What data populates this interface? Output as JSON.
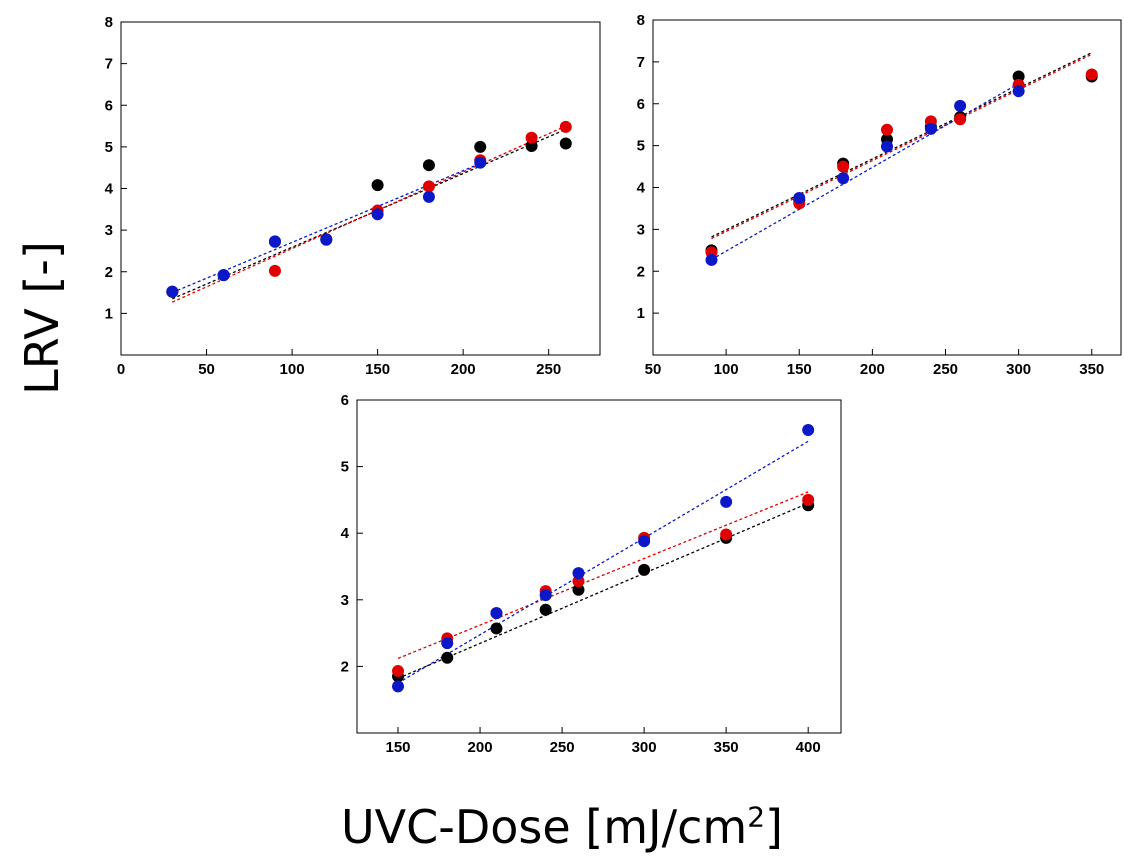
{
  "figure": {
    "ylabel": "LRV [-]",
    "xlabel": "UVC-Dose [mJ/cm",
    "xlabel_superscript": "2",
    "xlabel_suffix": "]"
  },
  "colors": {
    "black": "#000000",
    "red": "#e00000",
    "blue": "#0a18c8"
  },
  "chart_data": [
    {
      "type": "scatter",
      "title": "",
      "xlabel": "",
      "ylabel": "",
      "xlim": [
        0,
        280
      ],
      "ylim": [
        0,
        8
      ],
      "xticks": [
        0,
        50,
        100,
        150,
        200,
        250
      ],
      "yticks": [
        1,
        2,
        3,
        4,
        5,
        6,
        7,
        8
      ],
      "grid": false,
      "series": [
        {
          "color": "black",
          "x": [
            30,
            60,
            90,
            120,
            150,
            180,
            210,
            240,
            260
          ],
          "y": [
            1.52,
            1.92,
            2.72,
            2.78,
            4.08,
            4.56,
            5.0,
            5.02,
            5.08
          ],
          "fit": [
            [
              30,
              1.35
            ],
            [
              260,
              5.42
            ]
          ]
        },
        {
          "color": "red",
          "x": [
            30,
            90,
            150,
            180,
            210,
            240,
            260
          ],
          "y": [
            1.52,
            2.02,
            3.47,
            4.05,
            4.68,
            5.22,
            5.48
          ],
          "fit": [
            [
              30,
              1.27
            ],
            [
              260,
              5.5
            ]
          ]
        },
        {
          "color": "blue",
          "x": [
            30,
            60,
            90,
            120,
            150,
            180,
            210
          ],
          "y": [
            1.52,
            1.92,
            2.73,
            2.77,
            3.38,
            3.8,
            4.62
          ],
          "fit": [
            [
              30,
              1.5
            ],
            [
              210,
              4.6
            ]
          ]
        }
      ]
    },
    {
      "type": "scatter",
      "title": "",
      "xlabel": "",
      "ylabel": "",
      "xlim": [
        50,
        370
      ],
      "ylim": [
        0,
        8
      ],
      "xticks": [
        50,
        100,
        150,
        200,
        250,
        300,
        350
      ],
      "yticks": [
        1,
        2,
        3,
        4,
        5,
        6,
        7,
        8
      ],
      "grid": false,
      "series": [
        {
          "color": "black",
          "x": [
            90,
            150,
            180,
            210,
            240,
            260,
            300,
            350
          ],
          "y": [
            2.5,
            3.7,
            4.57,
            5.15,
            5.45,
            5.68,
            6.65,
            6.65
          ],
          "fit": [
            [
              90,
              2.82
            ],
            [
              350,
              7.22
            ]
          ]
        },
        {
          "color": "red",
          "x": [
            90,
            150,
            180,
            210,
            240,
            260,
            300,
            350
          ],
          "y": [
            2.45,
            3.62,
            4.5,
            5.38,
            5.58,
            5.63,
            6.45,
            6.7
          ],
          "fit": [
            [
              90,
              2.78
            ],
            [
              350,
              7.18
            ]
          ]
        },
        {
          "color": "blue",
          "x": [
            90,
            150,
            180,
            210,
            240,
            260,
            300
          ],
          "y": [
            2.27,
            3.75,
            4.22,
            4.98,
            5.4,
            5.95,
            6.3
          ],
          "fit": [
            [
              90,
              2.28
            ],
            [
              300,
              6.48
            ]
          ]
        }
      ]
    },
    {
      "type": "scatter",
      "title": "",
      "xlabel": "",
      "ylabel": "",
      "xlim": [
        125,
        420
      ],
      "ylim": [
        1,
        6
      ],
      "xticks": [
        150,
        200,
        250,
        300,
        350,
        400
      ],
      "yticks": [
        2,
        3,
        4,
        5,
        6
      ],
      "grid": false,
      "series": [
        {
          "color": "black",
          "x": [
            150,
            180,
            210,
            240,
            260,
            300,
            350,
            400
          ],
          "y": [
            1.85,
            2.13,
            2.57,
            2.85,
            3.15,
            3.45,
            3.93,
            4.42
          ],
          "fit": [
            [
              150,
              1.82
            ],
            [
              400,
              4.45
            ]
          ]
        },
        {
          "color": "red",
          "x": [
            150,
            180,
            210,
            240,
            260,
            300,
            350,
            400
          ],
          "y": [
            1.93,
            2.42,
            2.8,
            3.13,
            3.28,
            3.93,
            3.98,
            4.5
          ],
          "fit": [
            [
              150,
              2.12
            ],
            [
              400,
              4.62
            ]
          ]
        },
        {
          "color": "blue",
          "x": [
            150,
            180,
            210,
            240,
            260,
            300,
            350,
            400
          ],
          "y": [
            1.7,
            2.35,
            2.8,
            3.07,
            3.4,
            3.88,
            4.47,
            5.55
          ],
          "fit": [
            [
              150,
              1.75
            ],
            [
              400,
              5.38
            ]
          ]
        }
      ]
    }
  ]
}
